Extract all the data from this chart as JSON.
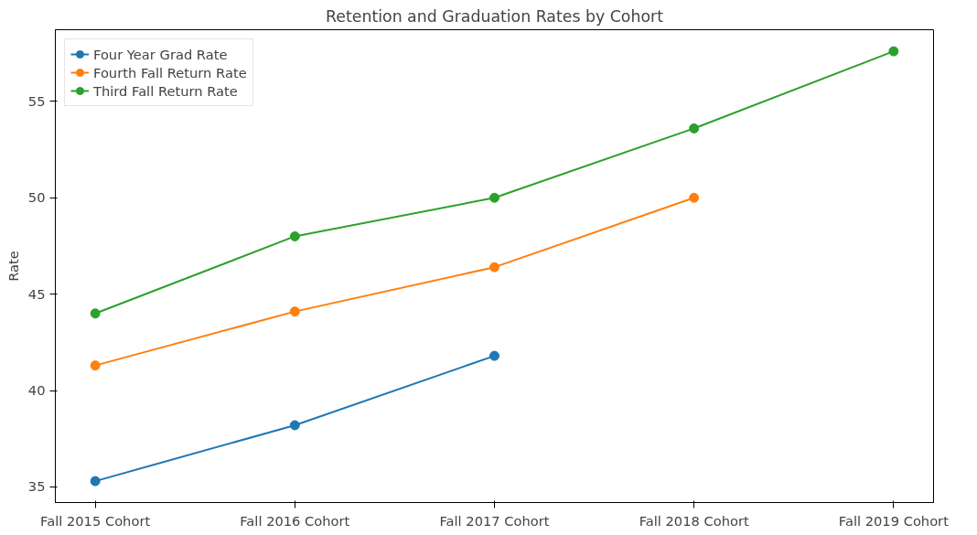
{
  "chart_data": {
    "type": "line",
    "title": "Retention and Graduation Rates by Cohort",
    "ylabel": "Rate",
    "categories": [
      "Fall 2015 Cohort",
      "Fall 2016 Cohort",
      "Fall 2017 Cohort",
      "Fall 2018 Cohort",
      "Fall 2019 Cohort"
    ],
    "series": [
      {
        "name": "Four Year Grad Rate",
        "color": "#1f77b4",
        "values": [
          35.3,
          38.2,
          41.8,
          null,
          null
        ]
      },
      {
        "name": "Fourth Fall Return Rate",
        "color": "#ff7f0e",
        "values": [
          41.3,
          44.1,
          46.4,
          50.0,
          null
        ]
      },
      {
        "name": "Third Fall Return Rate",
        "color": "#2ca02c",
        "values": [
          44.0,
          48.0,
          50.0,
          53.6,
          57.6
        ]
      }
    ],
    "ylim": [
      34.19,
      58.72
    ],
    "yticks": [
      35,
      40,
      45,
      50,
      55
    ],
    "grid": false,
    "legend": "top left",
    "marker": "circle",
    "line_style": "solid"
  }
}
